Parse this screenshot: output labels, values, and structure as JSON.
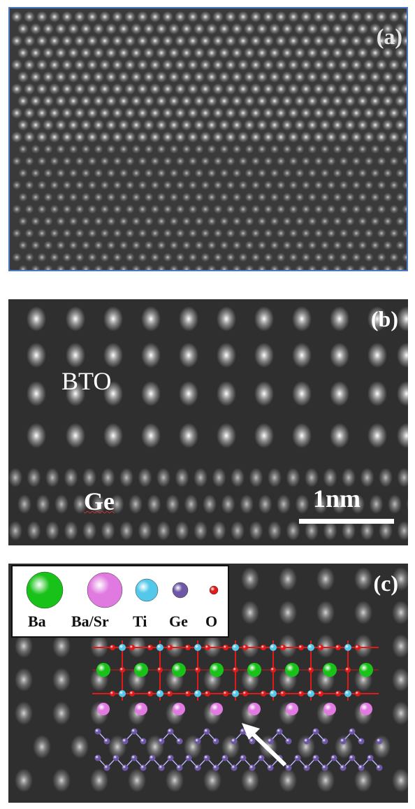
{
  "panels": {
    "a": {
      "label": "(a)"
    },
    "b": {
      "label": "(b)",
      "annotations": {
        "top_layer": "BTO",
        "substrate": "Ge"
      },
      "scale_bar": "1nm"
    },
    "c": {
      "label": "(c)",
      "legend": [
        {
          "name": "Ba",
          "color": "#19c219"
        },
        {
          "name": "Ba/Sr",
          "color": "#e07ae0"
        },
        {
          "name": "Ti",
          "color": "#54c8ea"
        },
        {
          "name": "Ge",
          "color": "#6e58a6"
        },
        {
          "name": "O",
          "color": "#e11919"
        }
      ]
    }
  },
  "colors": {
    "frame_a": "#4a78c4",
    "arrow": "#ffffff",
    "ge_bonds": "#b8b8ff"
  }
}
